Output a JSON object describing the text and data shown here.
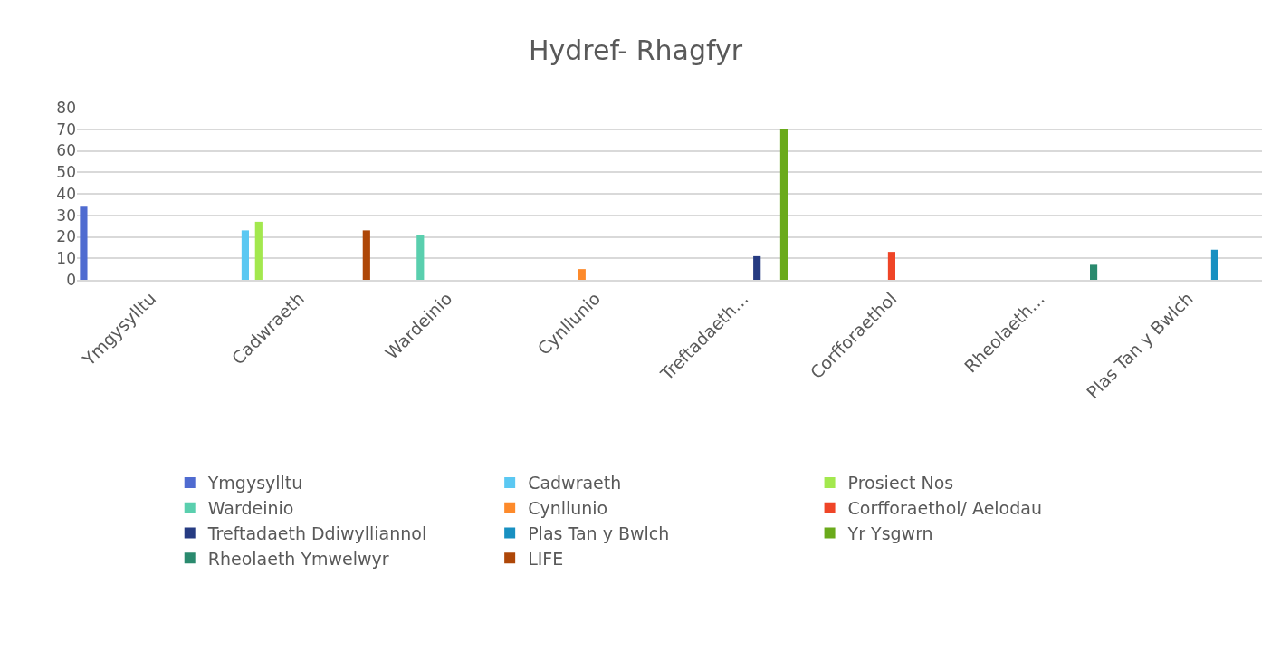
{
  "chart_data": {
    "type": "bar",
    "title": "Hydref- Rhagfyr",
    "categories": [
      "Ymgysylltu",
      "Cadwraeth",
      "Wardeinio",
      "Cynllunio",
      "Treftadaeth…",
      "Corfforaethol",
      "Rheolaeth…",
      "Plas Tan y Bwlch"
    ],
    "series": [
      {
        "name": "Ymgysylltu",
        "color": "#4f6bd0",
        "values": [
          34,
          null,
          null,
          null,
          null,
          null,
          null,
          null
        ]
      },
      {
        "name": "Cadwraeth",
        "color": "#5bc8f2",
        "values": [
          null,
          23,
          null,
          null,
          null,
          null,
          null,
          null
        ]
      },
      {
        "name": "Prosiect Nos",
        "color": "#a3e84e",
        "values": [
          null,
          27,
          null,
          null,
          null,
          null,
          null,
          null
        ]
      },
      {
        "name": "Wardeinio",
        "color": "#5acfae",
        "values": [
          null,
          null,
          21,
          null,
          null,
          null,
          null,
          null
        ]
      },
      {
        "name": "Cynllunio",
        "color": "#fd8a2b",
        "values": [
          null,
          null,
          null,
          5,
          null,
          null,
          null,
          null
        ]
      },
      {
        "name": "Corfforaethol/ Aelodau",
        "color": "#ef4527",
        "values": [
          null,
          null,
          null,
          null,
          null,
          13,
          null,
          null
        ]
      },
      {
        "name": "Treftadaeth Ddiwylliannol",
        "color": "#263b82",
        "values": [
          null,
          null,
          null,
          null,
          11,
          null,
          null,
          null
        ]
      },
      {
        "name": "Plas Tan y Bwlch",
        "color": "#1890c1",
        "values": [
          null,
          null,
          null,
          null,
          null,
          null,
          null,
          14
        ]
      },
      {
        "name": "Yr Ysgwrn",
        "color": "#6aaa1b",
        "values": [
          null,
          null,
          null,
          null,
          70,
          null,
          null,
          null
        ]
      },
      {
        "name": "Rheolaeth Ymwelwyr",
        "color": "#2a8a6e",
        "values": [
          null,
          null,
          null,
          null,
          null,
          null,
          7,
          null
        ]
      },
      {
        "name": "LIFE",
        "color": "#ae4708",
        "values": [
          null,
          23,
          null,
          null,
          null,
          null,
          null,
          null
        ]
      }
    ],
    "ylim": [
      0,
      80
    ],
    "yticks": [
      0,
      10,
      20,
      30,
      40,
      50,
      60,
      70,
      80
    ],
    "grid": "y",
    "legend": "bottom"
  }
}
